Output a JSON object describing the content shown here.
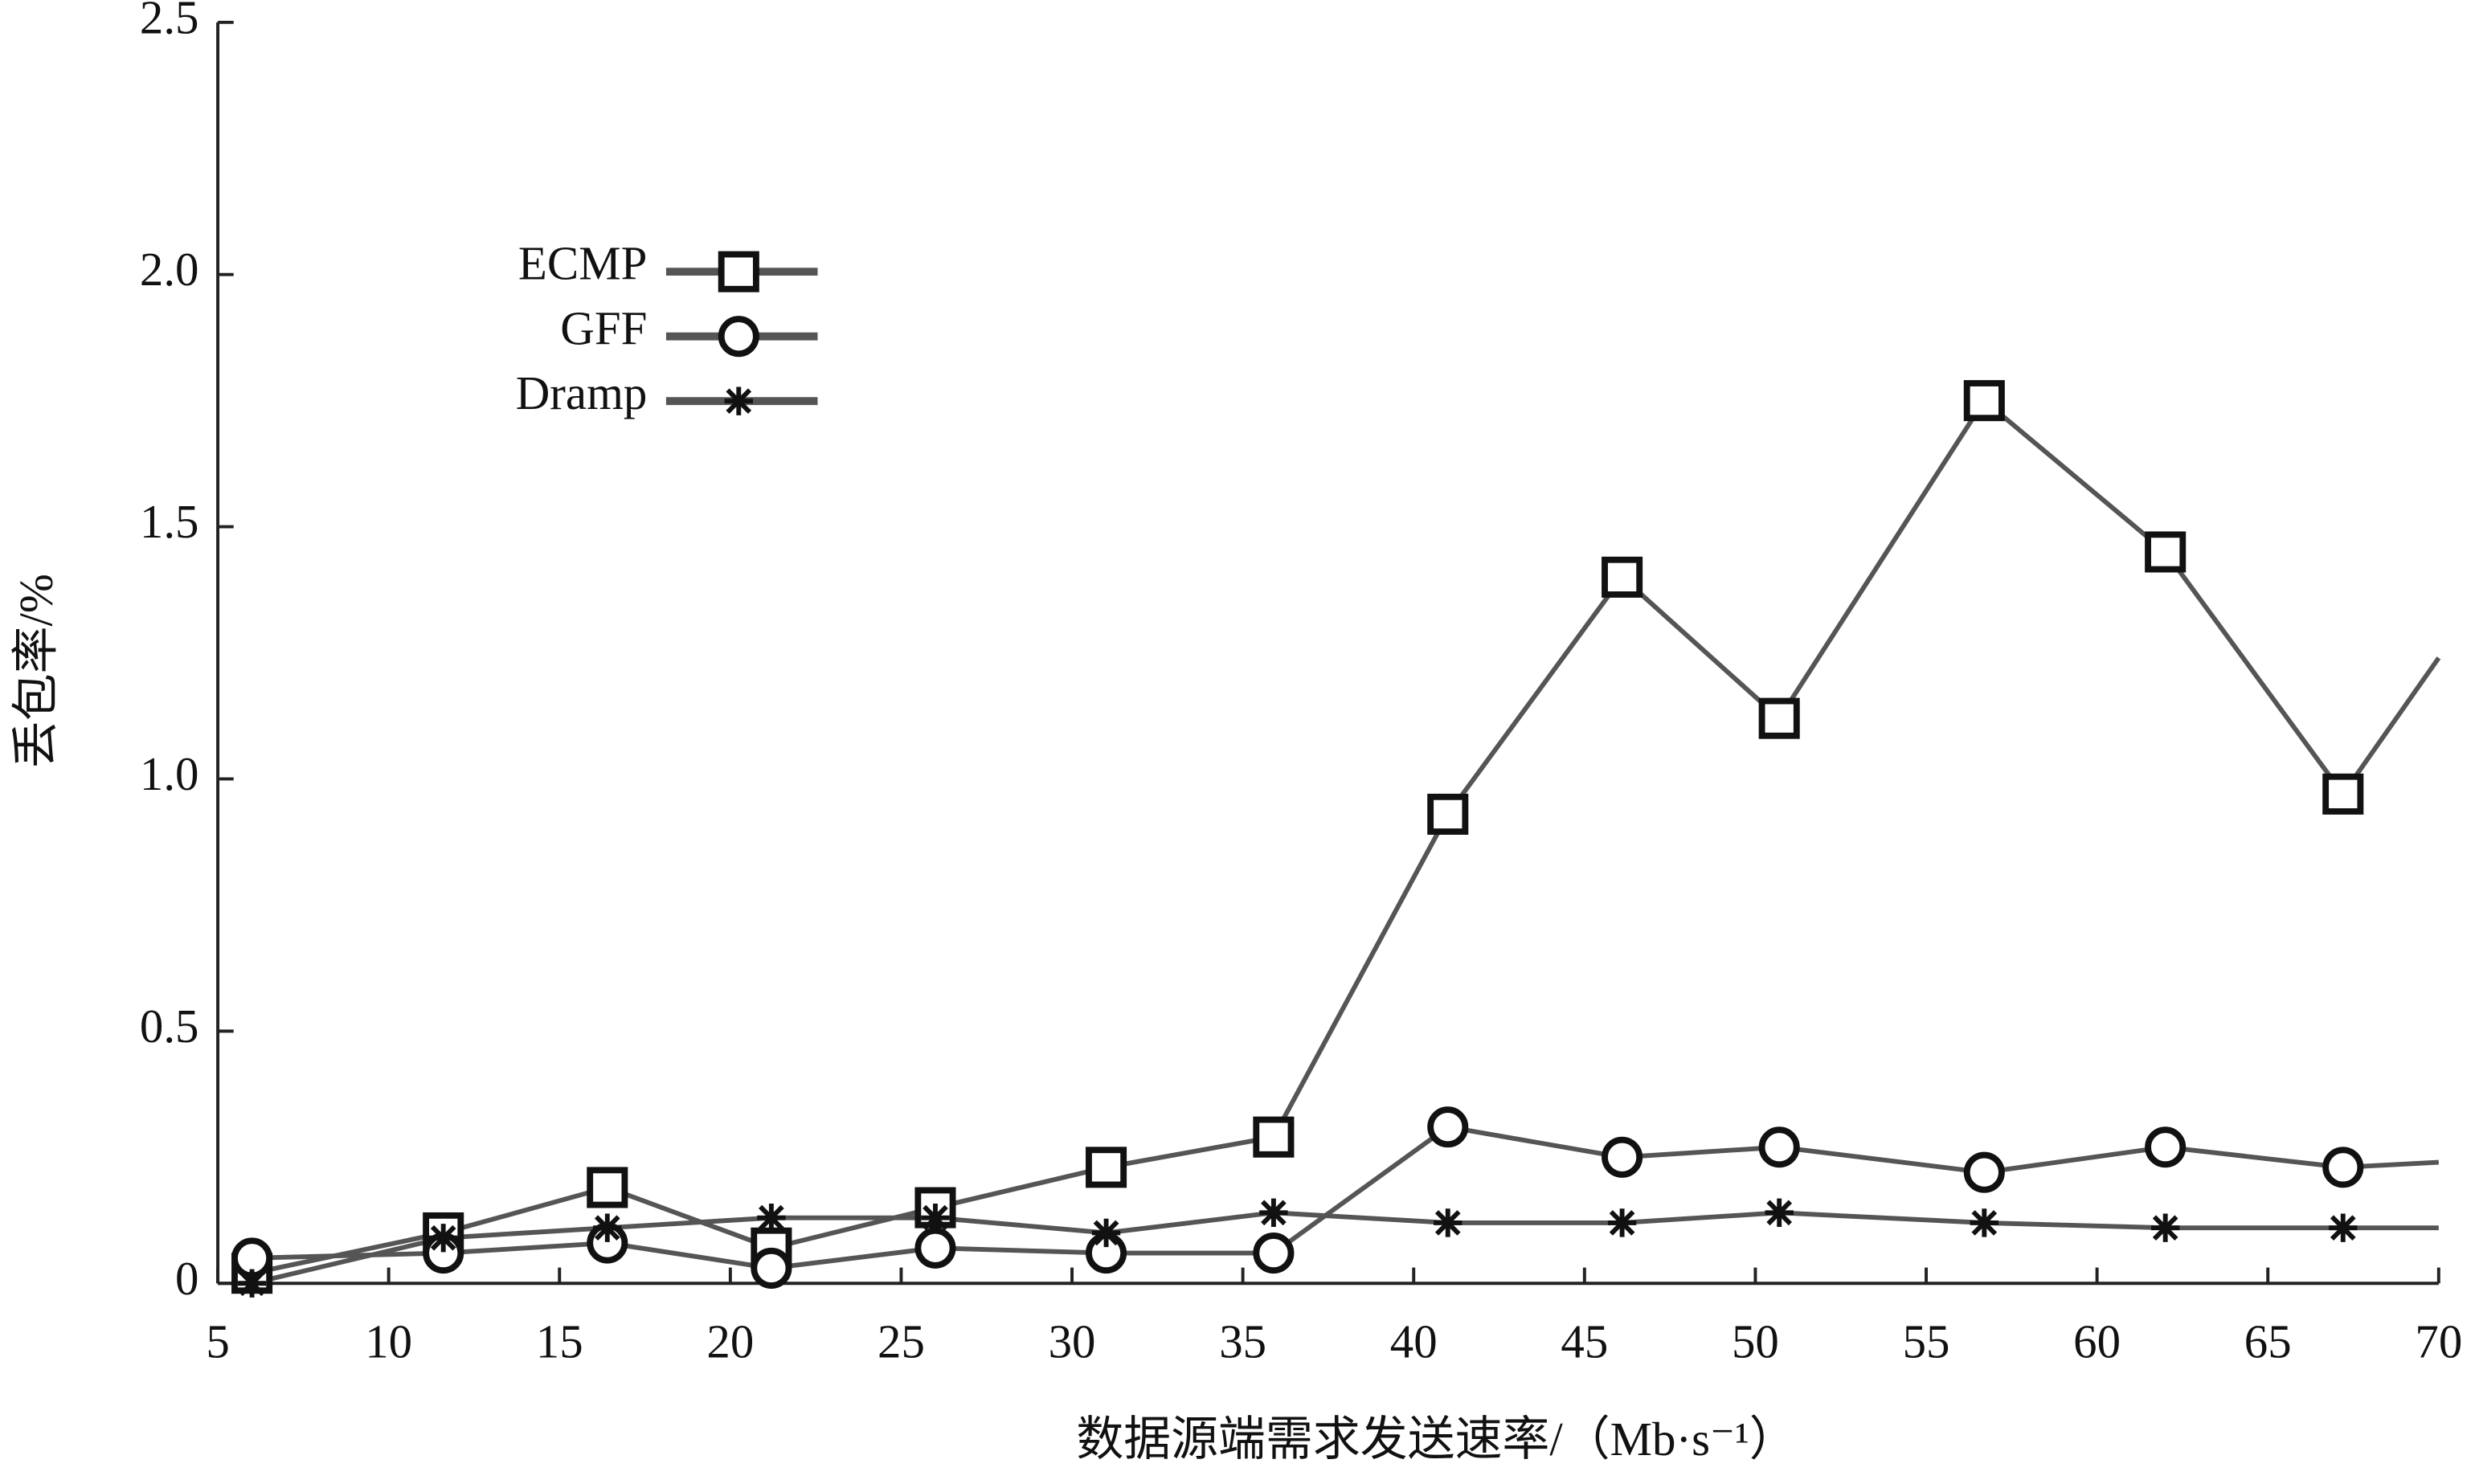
{
  "chart_data": {
    "type": "line",
    "xlabel": "数据源端需求发送速率/（Mb·s⁻¹）",
    "ylabel": "丢包率/%",
    "x": [
      6.0,
      11.6,
      16.4,
      21.2,
      26.0,
      31.0,
      35.9,
      41.0,
      46.1,
      50.7,
      56.7,
      62.0,
      67.2,
      70
    ],
    "series": [
      {
        "name": "ECMP",
        "color": "#555555",
        "marker": "square",
        "values": [
          0.02,
          0.1,
          0.19,
          0.07,
          0.15,
          0.23,
          0.29,
          0.93,
          1.4,
          1.12,
          1.75,
          1.45,
          0.97,
          1.24
        ]
      },
      {
        "name": "GFF",
        "color": "#555555",
        "marker": "circle",
        "values": [
          0.05,
          0.06,
          0.08,
          0.03,
          0.07,
          0.06,
          0.06,
          0.31,
          0.25,
          0.27,
          0.22,
          0.27,
          0.23,
          0.24
        ]
      },
      {
        "name": "Dramp",
        "color": "#555555",
        "marker": "asterisk",
        "values": [
          0.0,
          0.09,
          0.11,
          0.13,
          0.13,
          0.1,
          0.14,
          0.12,
          0.12,
          0.14,
          0.12,
          0.11,
          0.11,
          0.11
        ]
      }
    ],
    "xlim": [
      5,
      70
    ],
    "xticks": [
      5,
      10,
      15,
      20,
      25,
      30,
      35,
      40,
      45,
      50,
      55,
      60,
      65,
      70
    ],
    "ylim": [
      0,
      2.5
    ],
    "yticks": [
      0,
      0.5,
      {
        "value": 1,
        "label": "1.0"
      },
      1.5,
      {
        "value": 2,
        "label": "2.0"
      },
      2.5
    ],
    "legend": "upper-left",
    "grid": false
  }
}
